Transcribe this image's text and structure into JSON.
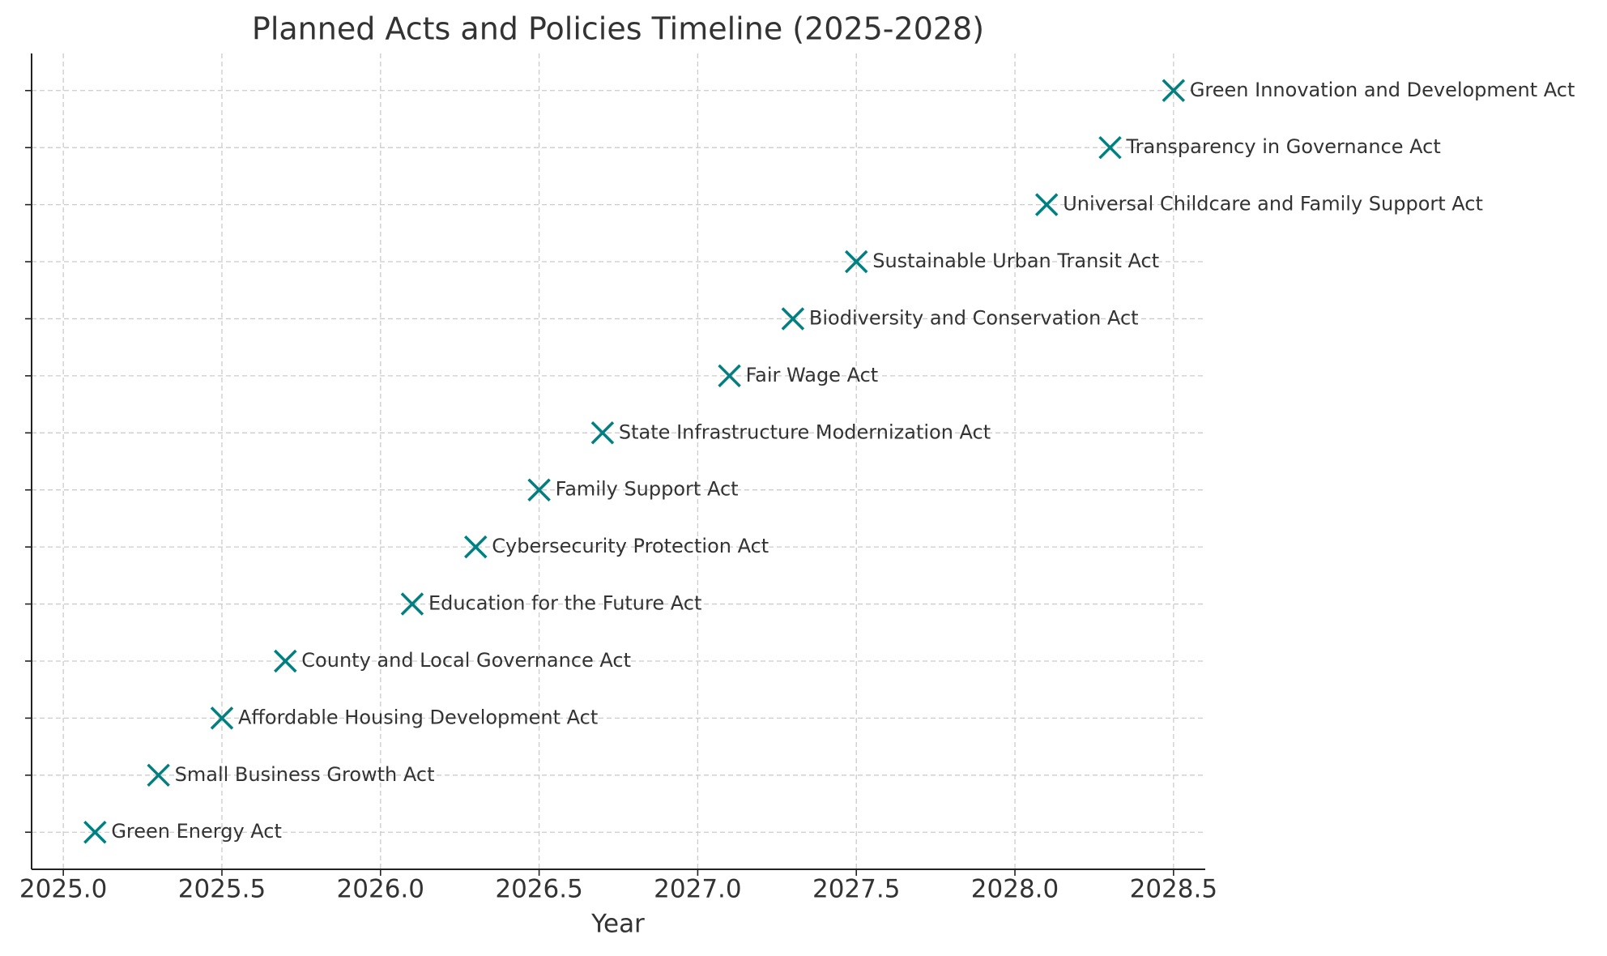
{
  "chart_data": {
    "type": "scatter",
    "title": "Planned Acts and Policies Timeline (2025-2028)",
    "x_label": "Year",
    "x": [
      2025.1,
      2025.3,
      2025.5,
      2025.7,
      2026.1,
      2026.3,
      2026.5,
      2026.7,
      2027.1,
      2027.3,
      2027.5,
      2028.1,
      2028.3,
      2028.5
    ],
    "values": [
      0,
      1,
      2,
      3,
      4,
      5,
      6,
      7,
      8,
      9,
      10,
      11,
      12,
      13
    ],
    "labels": [
      "Green Energy Act",
      "Small Business Growth Act",
      "Affordable Housing Development Act",
      "County and Local Governance Act",
      "Education for the Future Act",
      "Cybersecurity Protection Act",
      "Family Support Act",
      "State Infrastructure Modernization Act",
      "Fair Wage Act",
      "Biodiversity and Conservation Act",
      "Sustainable Urban Transit Act",
      "Universal Childcare and Family Support Act",
      "Transparency in Governance Act",
      "Green Innovation and Development Act"
    ],
    "color": "#008080",
    "xlim": [
      2024.9,
      2028.6
    ],
    "xticks": [
      {
        "value": 2025,
        "label": "2025.0"
      },
      2025.5,
      {
        "value": 2026,
        "label": "2026.0"
      },
      2026.5,
      {
        "value": 2027,
        "label": "2027.0"
      },
      2027.5,
      {
        "value": 2028,
        "label": "2028.0"
      },
      2028.5
    ],
    "ylim": [
      -0.65,
      13.65
    ],
    "yticks": [
      0,
      1,
      2,
      3,
      4,
      5,
      6,
      7,
      8,
      9,
      10,
      11,
      12,
      13
    ],
    "grid": true
  }
}
